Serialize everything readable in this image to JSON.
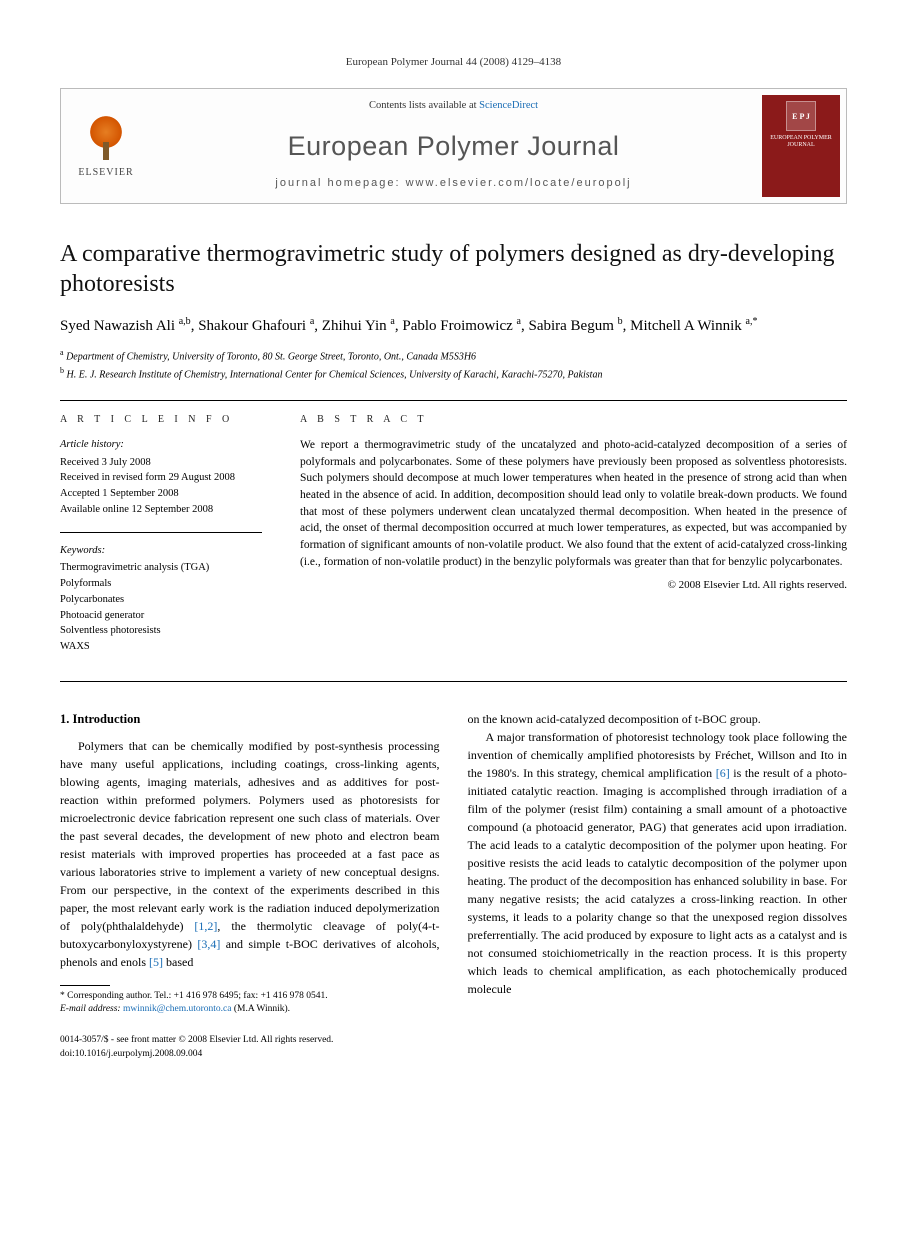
{
  "running_head": "European Polymer Journal 44 (2008) 4129–4138",
  "masthead": {
    "contents_prefix": "Contents lists available at ",
    "contents_link": "ScienceDirect",
    "journal_name": "European Polymer Journal",
    "homepage_prefix": "journal homepage: ",
    "homepage_url": "www.elsevier.com/locate/europolj",
    "publisher": "ELSEVIER",
    "cover_badge": "E P J",
    "cover_title": "EUROPEAN POLYMER JOURNAL"
  },
  "title": "A comparative thermogravimetric study of polymers designed as dry-developing photoresists",
  "authors_html": "Syed Nawazish Ali <sup>a,b</sup>, Shakour Ghafouri <sup>a</sup>, Zhihui Yin <sup>a</sup>, Pablo Froimowicz <sup>a</sup>, Sabira Begum <sup>b</sup>, Mitchell A Winnik <sup>a,*</sup>",
  "affiliations": [
    {
      "sup": "a",
      "text": "Department of Chemistry, University of Toronto, 80 St. George Street, Toronto, Ont., Canada M5S3H6"
    },
    {
      "sup": "b",
      "text": "H. E. J. Research Institute of Chemistry, International Center for Chemical Sciences, University of Karachi, Karachi-75270, Pakistan"
    }
  ],
  "article_info": {
    "heading": "A R T I C L E   I N F O",
    "history_label": "Article history:",
    "history": [
      "Received 3 July 2008",
      "Received in revised form 29 August 2008",
      "Accepted 1 September 2008",
      "Available online 12 September 2008"
    ],
    "keywords_label": "Keywords:",
    "keywords": [
      "Thermogravimetric analysis (TGA)",
      "Polyformals",
      "Polycarbonates",
      "Photoacid generator",
      "Solventless photoresists",
      "WAXS"
    ]
  },
  "abstract": {
    "heading": "A B S T R A C T",
    "text": "We report a thermogravimetric study of the uncatalyzed and photo-acid-catalyzed decomposition of a series of polyformals and polycarbonates. Some of these polymers have previously been proposed as solventless photoresists. Such polymers should decompose at much lower temperatures when heated in the presence of strong acid than when heated in the absence of acid. In addition, decomposition should lead only to volatile break-down products. We found that most of these polymers underwent clean uncatalyzed thermal decomposition. When heated in the presence of acid, the onset of thermal decomposition occurred at much lower temperatures, as expected, but was accompanied by formation of significant amounts of non-volatile product. We also found that the extent of acid-catalyzed cross-linking (i.e., formation of non-volatile product) in the benzylic polyformals was greater than that for benzylic polycarbonates.",
    "copyright": "© 2008 Elsevier Ltd. All rights reserved."
  },
  "section1": {
    "heading": "1. Introduction",
    "p1": "Polymers that can be chemically modified by post-synthesis processing have many useful applications, including coatings, cross-linking agents, blowing agents, imaging materials, adhesives and as additives for post-reaction within preformed polymers. Polymers used as photoresists for microelectronic device fabrication represent one such class of materials. Over the past several decades, the development of new photo and electron beam resist materials with improved properties has proceeded at a fast pace as various laboratories strive to implement a variety of new conceptual designs. From our perspective, in the context of the experiments described in this paper, the most relevant early work is the radiation induced depolymerization of poly(phthalaldehyde) ",
    "ref1": "[1,2]",
    "p1b": ", the thermolytic cleavage of poly(4-t-butoxycarbonyloxystyrene) ",
    "ref2": "[3,4]",
    "p1c": " and simple t-BOC derivatives of alcohols, phenols and enols ",
    "ref3": "[5]",
    "p1d": " based",
    "p2a": "on the known acid-catalyzed decomposition of t-BOC group.",
    "p3a": "A major transformation of photoresist technology took place following the invention of chemically amplified photoresists by Fréchet, Willson and Ito in the 1980's. In this strategy, chemical amplification ",
    "ref4": "[6]",
    "p3b": " is the result of a photo-initiated catalytic reaction. Imaging is accomplished through irradiation of a film of the polymer (resist film) containing a small amount of a photoactive compound (a photoacid generator, PAG) that generates acid upon irradiation. The acid leads to a catalytic decomposition of the polymer upon heating. For positive resists the acid leads to catalytic decomposition of the polymer upon heating. The product of the decomposition has enhanced solubility in base. For many negative resists; the acid catalyzes a cross-linking reaction. In other systems, it leads to a polarity change so that the unexposed region dissolves preferrentially. The acid produced by exposure to light acts as a catalyst and is not consumed stoichiometrically in the reaction process. It is this property which leads to chemical amplification, as each photochemically produced molecule"
  },
  "footnote": {
    "corr": "* Corresponding author. Tel.: +1 416 978 6495; fax: +1 416 978 0541.",
    "email_label": "E-mail address: ",
    "email": "mwinnik@chem.utoronto.ca",
    "email_who": " (M.A Winnik)."
  },
  "footer": {
    "line1": "0014-3057/$ - see front matter © 2008 Elsevier Ltd. All rights reserved.",
    "line2": "doi:10.1016/j.eurpolymj.2008.09.004"
  },
  "colors": {
    "link": "#1a6db5",
    "cover_bg": "#8b1a1a",
    "elsevier_orange": "#e67e22"
  }
}
